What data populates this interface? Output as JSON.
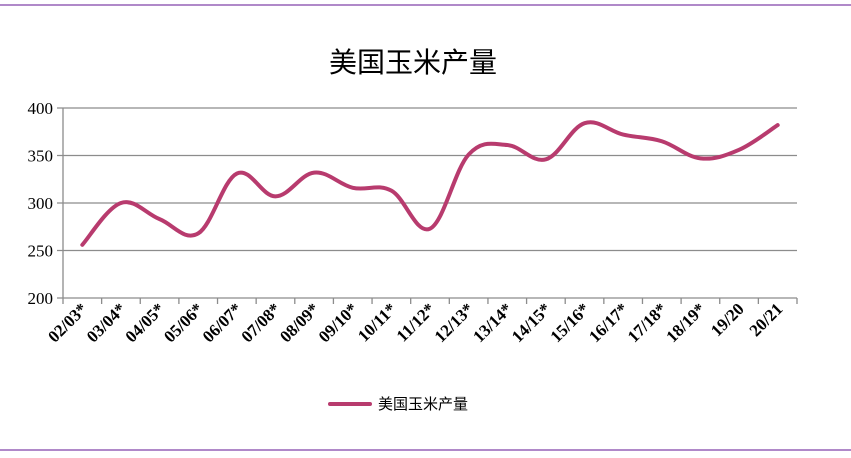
{
  "colors": {
    "series": "#b83b6e",
    "grid": "#8c8c8c",
    "frame": "#b089c9"
  },
  "chart_data": {
    "type": "line",
    "title": "美国玉米产量",
    "xlabel": "",
    "ylabel": "",
    "ylim": [
      200,
      400
    ],
    "yticks": [
      200,
      250,
      300,
      350,
      400
    ],
    "grid": true,
    "legend_position": "bottom",
    "categories": [
      "02/03*",
      "03/04*",
      "04/05*",
      "05/06*",
      "06/07*",
      "07/08*",
      "08/09*",
      "09/10*",
      "10/11*",
      "11/12*",
      "12/13*",
      "13/14*",
      "14/15*",
      "15/16*",
      "16/17*",
      "17/18*",
      "18/19*",
      "19/20",
      "20/21"
    ],
    "series": [
      {
        "name": "美国玉米产量",
        "values": [
          256,
          300,
          283,
          268,
          331,
          307,
          332,
          316,
          313,
          273,
          351,
          361,
          346,
          384,
          372,
          365,
          347,
          356,
          382
        ]
      }
    ]
  }
}
